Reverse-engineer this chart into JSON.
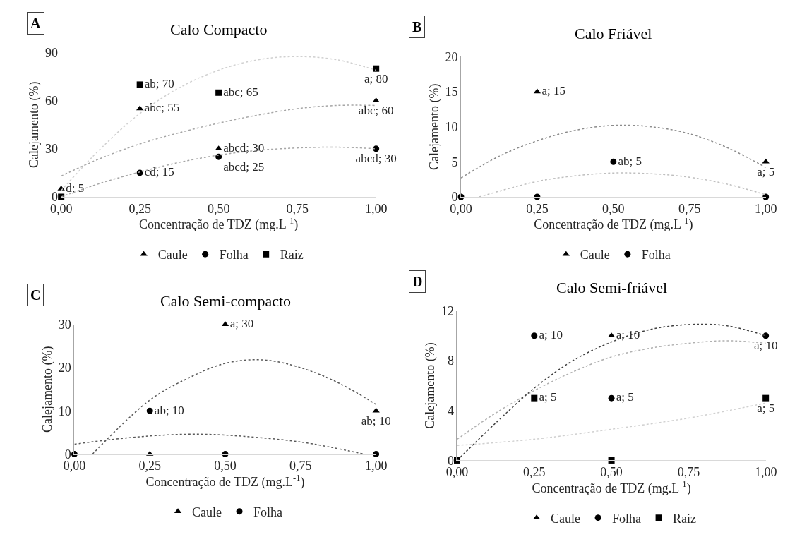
{
  "chart_data": [
    {
      "type": "scatter",
      "title": "Calo Compacto",
      "annotations": [
        "A"
      ],
      "xlabel": "Concentração de TDZ (mg.L$^{-1}$)",
      "ylabel": "Calejamento (%)",
      "x": [
        0,
        0.25,
        0.5,
        1
      ],
      "xlim": [
        0,
        1
      ],
      "xticks": [
        {
          "value": 0,
          "label": "0,00"
        },
        {
          "value": 0.25,
          "label": "0,25"
        },
        {
          "value": 0.5,
          "label": "0,50"
        },
        {
          "value": 0.75,
          "label": "0,75"
        },
        {
          "value": 1,
          "label": "1,00"
        }
      ],
      "ylim": [
        0,
        90
      ],
      "yticks": [
        0,
        30,
        60,
        90
      ],
      "grid": false,
      "legend": "bottom",
      "series": [
        {
          "name": "Caule",
          "color": "#000000",
          "marker": "triangle",
          "values": [
            5,
            55,
            30,
            60
          ],
          "value_labels": [
            "d; 5",
            "abc; 55",
            "abcd; 30",
            "abc; 60"
          ]
        },
        {
          "name": "Folha",
          "color": "#000000",
          "marker": "circle",
          "values": [
            null,
            15,
            25,
            30
          ],
          "value_labels": [
            null,
            "cd; 15",
            "abcd; 25",
            "abcd; 30"
          ]
        },
        {
          "name": "Raiz",
          "color": "#000000",
          "marker": "square",
          "values": [
            0,
            70,
            65,
            80
          ],
          "value_labels": [
            null,
            "ab; 70",
            "abc; 65",
            "a; 80"
          ]
        },
        {
          "type": "line",
          "color": "#a6a6a6",
          "line_style": "dotted",
          "x": [
            0,
            0.125,
            0.25,
            0.375,
            0.5,
            0.625,
            0.75,
            0.875,
            1
          ],
          "values": [
            13,
            24,
            33,
            40,
            46,
            51,
            55,
            57,
            57
          ]
        },
        {
          "type": "line",
          "color": "#a6a6a6",
          "line_style": "dotted",
          "x": [
            0,
            0.125,
            0.25,
            0.375,
            0.5,
            0.625,
            0.75,
            0.875,
            1
          ],
          "values": [
            0,
            8.5,
            15.5,
            21.5,
            26,
            29,
            30.5,
            31,
            30
          ]
        },
        {
          "type": "line",
          "color": "#d0d0d0",
          "line_style": "dotted",
          "x": [
            0,
            0.125,
            0.25,
            0.375,
            0.5,
            0.625,
            0.75,
            0.875,
            1
          ],
          "values": [
            4,
            30,
            52,
            68,
            79,
            85.5,
            87.5,
            85.5,
            79
          ]
        }
      ]
    },
    {
      "type": "scatter",
      "title": "Calo Friável",
      "annotations": [
        "B"
      ],
      "xlabel": "Concentração de TDZ (mg.L$^{-1}$)",
      "ylabel": "Calejamento (%)",
      "x": [
        0,
        0.25,
        0.5,
        1
      ],
      "xlim": [
        0,
        1
      ],
      "xticks": [
        {
          "value": 0,
          "label": "0,00"
        },
        {
          "value": 0.25,
          "label": "0,25"
        },
        {
          "value": 0.5,
          "label": "0,50"
        },
        {
          "value": 0.75,
          "label": "0,75"
        },
        {
          "value": 1,
          "label": "1,00"
        }
      ],
      "ylim": [
        0,
        20
      ],
      "yticks": [
        0,
        5,
        10,
        15,
        20
      ],
      "grid": false,
      "legend": "bottom",
      "series": [
        {
          "name": "Caule",
          "color": "#000000",
          "marker": "triangle",
          "values": [
            null,
            15,
            null,
            5
          ],
          "value_labels": [
            null,
            "a; 15",
            null,
            "a; 5"
          ]
        },
        {
          "name": "Folha",
          "color": "#000000",
          "marker": "circle",
          "values": [
            0,
            0,
            5,
            0
          ],
          "value_labels": [
            null,
            null,
            "ab; 5",
            null
          ]
        },
        {
          "type": "line",
          "color": "#8c8c8c",
          "line_style": "dotted",
          "x": [
            0,
            0.125,
            0.25,
            0.375,
            0.5,
            0.625,
            0.75,
            0.875,
            1
          ],
          "values": [
            2.7,
            5.8,
            8,
            9.5,
            10.2,
            10,
            9,
            7,
            4.2
          ]
        },
        {
          "type": "line",
          "color": "#bfbfbf",
          "line_style": "dotted",
          "x": [
            0.06,
            0.25,
            0.375,
            0.5,
            0.625,
            0.75,
            0.875,
            1
          ],
          "values": [
            0,
            2.2,
            3,
            3.4,
            3.3,
            2.8,
            1.8,
            0.3
          ]
        }
      ]
    },
    {
      "type": "scatter",
      "title": "Calo Semi-compacto",
      "annotations": [
        "C"
      ],
      "xlabel": "Concentração de TDZ (mg.L$^{-1}$)",
      "ylabel": "Calejamento (%)",
      "x": [
        0,
        0.25,
        0.5,
        1
      ],
      "xlim": [
        0,
        1
      ],
      "xticks": [
        {
          "value": 0,
          "label": "0,00"
        },
        {
          "value": 0.25,
          "label": "0,25"
        },
        {
          "value": 0.5,
          "label": "0,50"
        },
        {
          "value": 0.75,
          "label": "0,75"
        },
        {
          "value": 1,
          "label": "1,00"
        }
      ],
      "ylim": [
        0,
        30
      ],
      "yticks": [
        0,
        10,
        20,
        30
      ],
      "grid": false,
      "legend": "bottom",
      "series": [
        {
          "name": "Caule",
          "color": "#000000",
          "marker": "triangle",
          "values": [
            null,
            0,
            30,
            10
          ],
          "value_labels": [
            null,
            null,
            "a; 30",
            "ab; 10"
          ]
        },
        {
          "name": "Folha",
          "color": "#000000",
          "marker": "circle",
          "values": [
            0,
            10,
            0,
            0
          ],
          "value_labels": [
            null,
            "ab; 10",
            null,
            null
          ]
        },
        {
          "type": "line",
          "color": "#595959",
          "line_style": "dotted",
          "x": [
            0.06,
            0.25,
            0.375,
            0.5,
            0.625,
            0.75,
            0.875,
            1
          ],
          "values": [
            0,
            12.5,
            17.5,
            21,
            21.8,
            20,
            16.5,
            11.5
          ]
        },
        {
          "type": "line",
          "color": "#595959",
          "line_style": "dotted",
          "x": [
            0,
            0.125,
            0.25,
            0.375,
            0.5,
            0.75,
            0.96
          ],
          "values": [
            2.3,
            3.4,
            4.2,
            4.6,
            4.4,
            2.8,
            0
          ]
        }
      ]
    },
    {
      "type": "scatter",
      "title": "Calo Semi-friável",
      "annotations": [
        "D"
      ],
      "xlabel": "Concentração de TDZ (mg.L$^{-1}$)",
      "ylabel": "Calejamento (%)",
      "x": [
        0,
        0.25,
        0.5,
        1
      ],
      "xlim": [
        0,
        1
      ],
      "xticks": [
        {
          "value": 0,
          "label": "0,00"
        },
        {
          "value": 0.25,
          "label": "0,25"
        },
        {
          "value": 0.5,
          "label": "0,50"
        },
        {
          "value": 0.75,
          "label": "0,75"
        },
        {
          "value": 1,
          "label": "1,00"
        }
      ],
      "ylim": [
        0,
        12
      ],
      "yticks": [
        0,
        4,
        8,
        12
      ],
      "grid": false,
      "legend": "bottom",
      "series": [
        {
          "name": "Caule",
          "color": "#000000",
          "marker": "triangle",
          "values": [
            null,
            null,
            10,
            null
          ],
          "value_labels": [
            null,
            null,
            "a; 10",
            null
          ]
        },
        {
          "name": "Folha",
          "color": "#000000",
          "marker": "circle",
          "values": [
            null,
            10,
            5,
            10
          ],
          "value_labels": [
            null,
            "a; 10",
            "a; 5",
            "a; 10"
          ]
        },
        {
          "name": "Raiz",
          "color": "#000000",
          "marker": "square",
          "values": [
            0,
            5,
            0,
            5
          ],
          "value_labels": [
            null,
            "a; 5",
            null,
            "a; 5"
          ]
        },
        {
          "type": "line",
          "color": "#b0b0b0",
          "line_style": "dotted",
          "x": [
            0,
            0.125,
            0.25,
            0.375,
            0.5,
            0.625,
            0.75,
            0.875,
            1
          ],
          "values": [
            1.7,
            3.8,
            5.6,
            7.1,
            8.3,
            9,
            9.4,
            9.6,
            9.4
          ]
        },
        {
          "type": "line",
          "color": "#404040",
          "line_style": "dotted",
          "x": [
            0,
            0.125,
            0.25,
            0.375,
            0.5,
            0.625,
            0.75,
            0.875,
            1
          ],
          "values": [
            0,
            3,
            5.8,
            8,
            9.5,
            10.5,
            10.9,
            10.8,
            10
          ]
        },
        {
          "type": "line",
          "color": "#d0d0d0",
          "line_style": "dotted",
          "x": [
            0,
            0.25,
            0.5,
            0.75,
            1
          ],
          "values": [
            1.2,
            1.7,
            2.5,
            3.4,
            4.6
          ]
        }
      ]
    }
  ]
}
